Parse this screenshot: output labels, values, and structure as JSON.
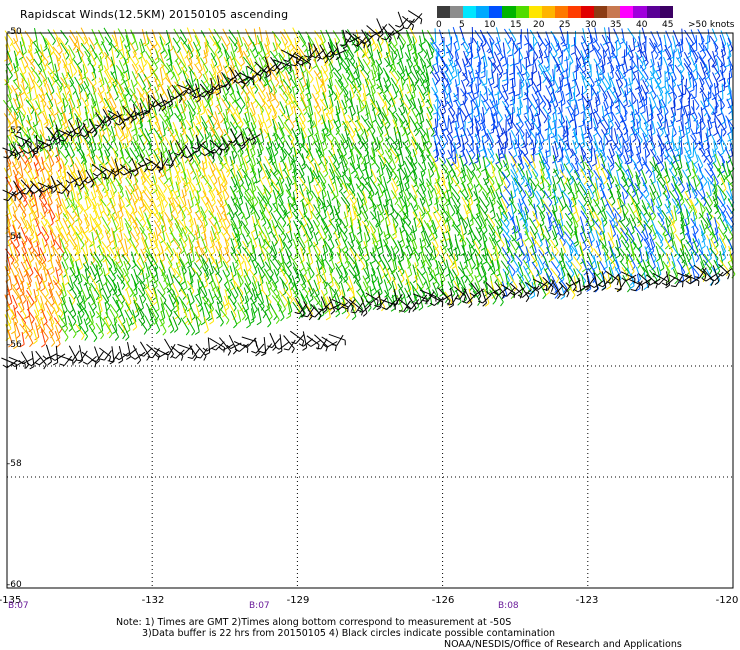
{
  "header": {
    "title": "Rapidscat Winds(12.5KM) 20150105 ascending"
  },
  "legend": {
    "ticks": [
      "0",
      "5",
      "10",
      "15",
      "20",
      "25",
      "30",
      "35",
      "40",
      "45",
      ">50 knots"
    ],
    "colors": [
      "#3c3c3c",
      "#8c8c8c",
      "#00e6ff",
      "#00aaff",
      "#0050ff",
      "#00b400",
      "#50dc00",
      "#ffe600",
      "#ffb400",
      "#ff7800",
      "#ff3c00",
      "#e10000",
      "#8c3c14",
      "#c87850",
      "#ff00ff",
      "#a000dc",
      "#5a0096",
      "#3c0064"
    ]
  },
  "axes": {
    "lat_labels": [
      "-50",
      "-52",
      "-54",
      "-56",
      "-58",
      "-60"
    ],
    "lon_labels": [
      "-135",
      "-132",
      "-129",
      "-126",
      "-123",
      "-120"
    ],
    "time_labels": [
      "B:07",
      "B:07",
      "B:08"
    ]
  },
  "notes": {
    "line1": "Note: 1) Times are GMT 2)Times along bottom correspond to measurement at -50S",
    "line2": "3)Data buffer is 22 hrs from 20150105 4) Black circles indicate possible contamination",
    "credit": "NOAA/NESDIS/Office of Research and Applications"
  },
  "map_data": {
    "lon_range": [
      -135,
      -120
    ],
    "lat_range": [
      -60,
      -50
    ],
    "gridlines": "dotted",
    "wind_color_scale": "blue-green-yellow-orange-red by speed; black = possible contamination"
  }
}
